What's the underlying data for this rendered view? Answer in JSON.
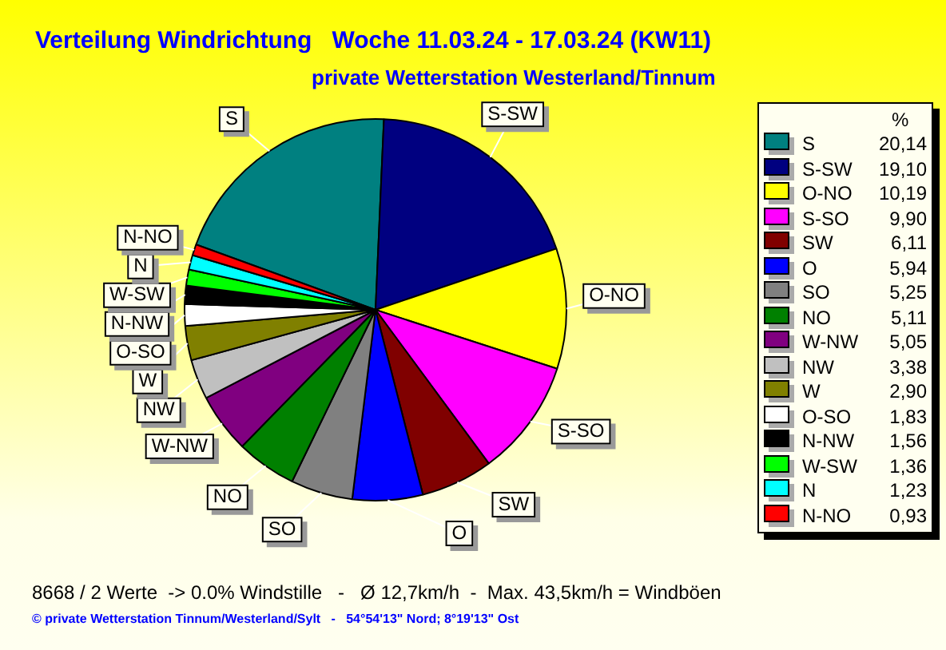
{
  "chart_data": {
    "type": "pie",
    "title": "Verteilung Windrichtung   Woche 11.03.24 - 17.03.24 (KW11)",
    "subtitle": "private Wetterstation Westerland/Tinnum",
    "legend_title": "%",
    "legend": "right",
    "categories": [
      "S",
      "S-SW",
      "O-NO",
      "S-SO",
      "SW",
      "O",
      "SO",
      "NO",
      "W-NW",
      "NW",
      "W",
      "O-SO",
      "N-NW",
      "W-SW",
      "N",
      "N-NO"
    ],
    "values": [
      20.14,
      19.1,
      10.19,
      9.9,
      6.11,
      5.94,
      5.25,
      5.11,
      5.05,
      3.38,
      2.9,
      1.83,
      1.56,
      1.36,
      1.23,
      0.93
    ],
    "value_labels": [
      "20,14",
      "19,10",
      "10,19",
      "9,90",
      "6,11",
      "5,94",
      "5,25",
      "5,11",
      "5,05",
      "3,38",
      "2,90",
      "1,83",
      "1,56",
      "1,36",
      "1,23",
      "0,93"
    ],
    "colors": [
      "#008080",
      "#000080",
      "#ffff00",
      "#ff00ff",
      "#800000",
      "#0000ff",
      "#808080",
      "#008000",
      "#800080",
      "#c0c0c0",
      "#808000",
      "#ffffff",
      "#000000",
      "#00ff00",
      "#00ffff",
      "#ff0000"
    ],
    "annotations": [
      "8668 / 2 Werte  -> 0.0% Windstille   -   Ø 12,7km/h  -  Max. 43,5km/h = Windböen",
      "© private Wetterstation Tinnum/Westerland/Sylt   -   54°54'13\" Nord; 8°19'13\" Ost"
    ]
  }
}
